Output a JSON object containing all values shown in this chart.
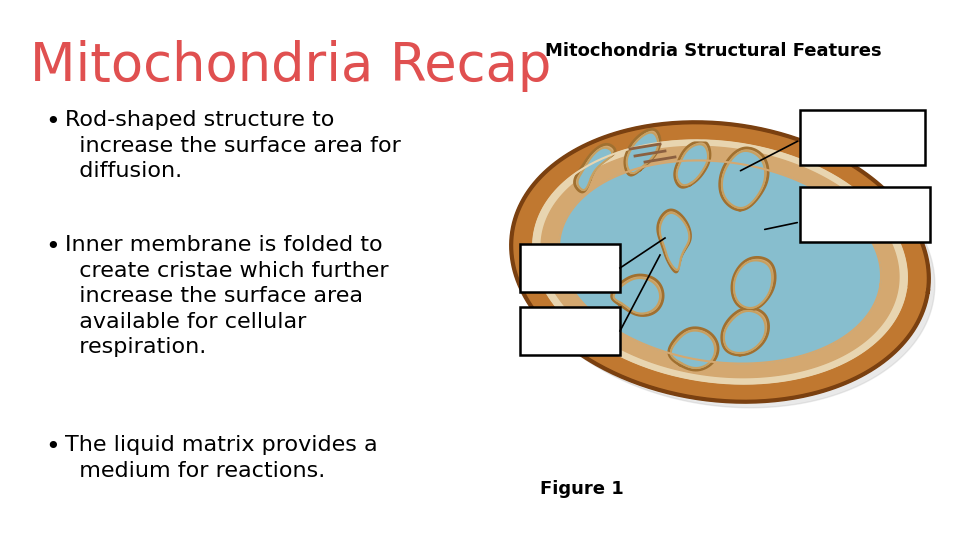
{
  "title": "Mitochondria Recap",
  "subtitle": "Mitochondria Structural Features",
  "title_color": "#e05050",
  "subtitle_color": "#000000",
  "background_color": "#ffffff",
  "bullet_points": [
    "• Rod-shaped structure to\n   increase the surface area for\n   diffusion.",
    "• Inner membrane is folded to\n   create cristae which further\n   increase the surface area\n   available for cellular\n   respiration.",
    "• The liquid matrix provides a\n   medium for reactions."
  ],
  "figure_caption": "Figure 1",
  "title_fontsize": 38,
  "subtitle_fontsize": 13,
  "bullet_fontsize": 16,
  "caption_fontsize": 13,
  "outer_brown": "#C07830",
  "inner_tan": "#D4A870",
  "cream": "#E8D5B0",
  "blue_matrix": "#87BECE",
  "dark_brown_edge": "#8B4513"
}
